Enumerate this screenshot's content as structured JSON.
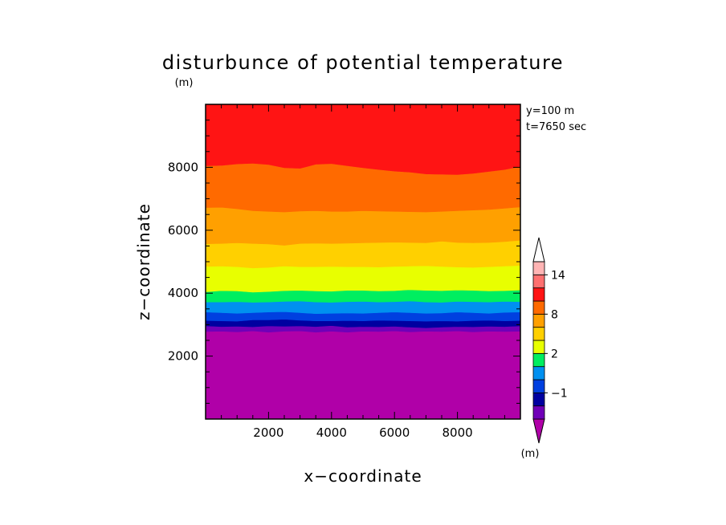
{
  "chart_data": {
    "type": "contour",
    "title": "disturbunce of potential temperature",
    "xlabel": "x−coordinate",
    "ylabel": "z−coordinate",
    "x_unit": "(m)",
    "y_unit": "(m)",
    "annotations": [
      "y=100 m",
      "t=7650 sec"
    ],
    "xlim": [
      0,
      10000
    ],
    "ylim": [
      0,
      10000
    ],
    "x_ticks": [
      2000,
      4000,
      6000,
      8000
    ],
    "y_ticks": [
      2000,
      4000,
      6000,
      8000
    ],
    "colorbar": {
      "unit": "(m)",
      "tick_labels": [
        "−1",
        "2",
        "8",
        "14"
      ],
      "levels": [
        -3,
        -2,
        -1,
        0,
        1,
        2,
        4,
        6,
        8,
        10,
        12,
        14,
        16
      ],
      "colors": [
        "#b000a8",
        "#7000b8",
        "#0000a0",
        "#0040e0",
        "#0090f0",
        "#00ee60",
        "#e8ff00",
        "#ffd000",
        "#ffa000",
        "#ff6a00",
        "#ff1414",
        "#ff7070",
        "#ffb4b4",
        "#ffffff"
      ]
    },
    "band_boundaries": [
      {
        "level": -3,
        "color_below": "#b000a8",
        "z": [
          2780,
          2790,
          2770,
          2800,
          2760,
          2790,
          2800,
          2760,
          2790,
          2760,
          2790,
          2780,
          2800,
          2770,
          2790,
          2780,
          2800,
          2770,
          2790,
          2780,
          2790
        ]
      },
      {
        "level": -2,
        "color_below": "#7000b8",
        "z": [
          2960,
          2940,
          2950,
          2930,
          2960,
          2950,
          2960,
          2940,
          2970,
          2920,
          2940,
          2930,
          2950,
          2920,
          2900,
          2920,
          2940,
          2930,
          2950,
          2940,
          2960
        ]
      },
      {
        "level": -1,
        "color_below": "#0000a0",
        "z": [
          3130,
          3120,
          3110,
          3150,
          3150,
          3170,
          3140,
          3120,
          3120,
          3130,
          3120,
          3140,
          3130,
          3120,
          3110,
          3120,
          3110,
          3130,
          3140,
          3120,
          3130
        ]
      },
      {
        "level": 0,
        "color_below": "#0040e0",
        "z": [
          3400,
          3380,
          3360,
          3380,
          3400,
          3410,
          3380,
          3350,
          3360,
          3370,
          3360,
          3380,
          3400,
          3380,
          3360,
          3370,
          3400,
          3380,
          3360,
          3390,
          3400
        ]
      },
      {
        "level": 1,
        "color_below": "#0090f0",
        "z": [
          3720,
          3720,
          3730,
          3710,
          3720,
          3740,
          3750,
          3720,
          3710,
          3730,
          3740,
          3720,
          3730,
          3750,
          3720,
          3710,
          3740,
          3730,
          3720,
          3740,
          3730
        ]
      },
      {
        "level": 2,
        "color_below": "#00ee60",
        "z": [
          4040,
          4080,
          4070,
          4030,
          4050,
          4080,
          4090,
          4070,
          4060,
          4090,
          4090,
          4070,
          4080,
          4110,
          4090,
          4080,
          4100,
          4090,
          4070,
          4080,
          4100
        ]
      },
      {
        "level": 4,
        "color_below": "#e8ff00",
        "z": [
          4850,
          4860,
          4840,
          4800,
          4820,
          4860,
          4840,
          4840,
          4850,
          4840,
          4840,
          4830,
          4850,
          4860,
          4870,
          4850,
          4830,
          4820,
          4840,
          4860,
          4880
        ]
      },
      {
        "level": 6,
        "color_below": "#ffd000",
        "z": [
          5570,
          5580,
          5600,
          5580,
          5560,
          5520,
          5580,
          5590,
          5580,
          5590,
          5600,
          5610,
          5620,
          5610,
          5600,
          5650,
          5610,
          5600,
          5610,
          5640,
          5680
        ]
      },
      {
        "level": 8,
        "color_below": "#ffa000",
        "z": [
          6720,
          6730,
          6680,
          6620,
          6600,
          6580,
          6610,
          6620,
          6600,
          6600,
          6620,
          6610,
          6600,
          6590,
          6580,
          6600,
          6620,
          6640,
          6660,
          6700,
          6740
        ]
      },
      {
        "level": 10,
        "color_below": "#ff6a00",
        "z": [
          8040,
          8050,
          8100,
          8120,
          8080,
          7980,
          7960,
          8090,
          8110,
          8040,
          7980,
          7920,
          7870,
          7840,
          7780,
          7770,
          7760,
          7800,
          7860,
          7920,
          8020
        ]
      }
    ],
    "top_band_color": "#ff1414"
  }
}
